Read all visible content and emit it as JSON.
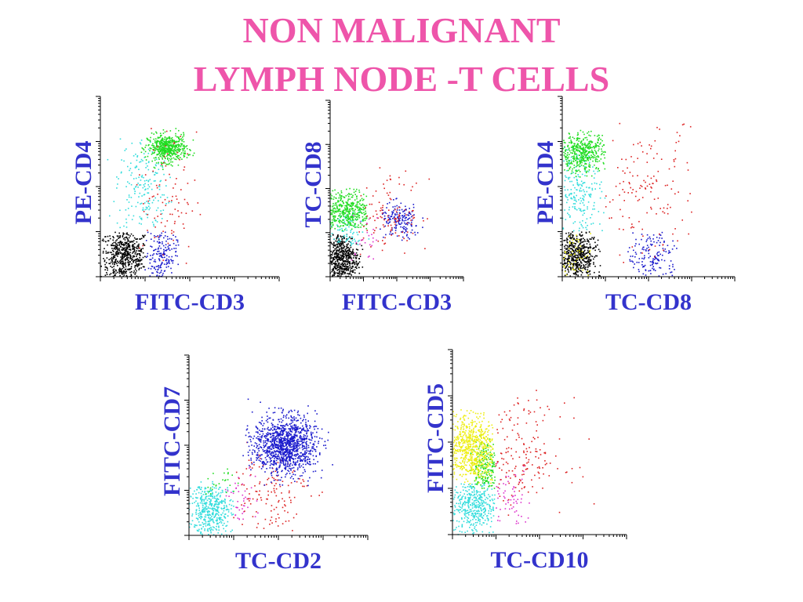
{
  "title": {
    "line1": "NON MALIGNANT",
    "line2": "LYMPH NODE -T CELLS"
  },
  "colors": {
    "title": "#ee55aa",
    "axis_label": "#3333cc",
    "black": "#000000",
    "blue": "#1a1acc",
    "green": "#22dd22",
    "cyan": "#33dddd",
    "red": "#dd2222",
    "magenta": "#dd33cc",
    "yellow": "#eeee11"
  },
  "chart_data": [
    {
      "type": "scatter",
      "xlabel": "FITC-CD3",
      "ylabel": "PE-CD4",
      "xlim": [
        0,
        4
      ],
      "ylim": [
        0,
        4
      ],
      "clusters": [
        {
          "color": "black",
          "n": 520,
          "cx": 0.55,
          "cy": 0.45,
          "sx": 0.28,
          "sy": 0.3,
          "xmin": 0.0,
          "xmax": 1.0,
          "ymin": 0.0,
          "ymax": 1.0
        },
        {
          "color": "cyan",
          "n": 190,
          "cx": 0.95,
          "cy": 2.0,
          "sx": 0.3,
          "sy": 0.55,
          "xmin": 0.1,
          "xmax": 1.6,
          "ymin": 1.0,
          "ymax": 3.1
        },
        {
          "color": "green",
          "n": 520,
          "cx": 1.5,
          "cy": 2.85,
          "sx": 0.22,
          "sy": 0.15,
          "xmin": 0.9,
          "xmax": 2.1,
          "ymin": 2.3,
          "ymax": 3.3
        },
        {
          "color": "blue",
          "n": 170,
          "cx": 1.35,
          "cy": 0.45,
          "sx": 0.18,
          "sy": 0.3,
          "xmin": 1.0,
          "xmax": 1.8,
          "ymin": 0.0,
          "ymax": 1.0
        },
        {
          "color": "red",
          "n": 90,
          "cx": 1.45,
          "cy": 1.7,
          "sx": 0.35,
          "sy": 0.75,
          "xmin": 0.8,
          "xmax": 2.5,
          "ymin": 0.2,
          "ymax": 3.4
        }
      ]
    },
    {
      "type": "scatter",
      "xlabel": "FITC-CD3",
      "ylabel": "TC-CD8",
      "xlim": [
        0,
        4
      ],
      "ylim": [
        0,
        4
      ],
      "clusters": [
        {
          "color": "black",
          "n": 480,
          "cx": 0.35,
          "cy": 0.4,
          "sx": 0.25,
          "sy": 0.3,
          "xmin": 0.0,
          "xmax": 1.0,
          "ymin": 0.0,
          "ymax": 1.0
        },
        {
          "color": "cyan",
          "n": 90,
          "cx": 0.45,
          "cy": 1.1,
          "sx": 0.3,
          "sy": 0.3,
          "xmin": 0.0,
          "xmax": 1.2,
          "ymin": 0.7,
          "ymax": 1.6
        },
        {
          "color": "green",
          "n": 380,
          "cx": 0.5,
          "cy": 1.5,
          "sx": 0.35,
          "sy": 0.25,
          "xmin": 0.0,
          "xmax": 1.1,
          "ymin": 1.05,
          "ymax": 2.0
        },
        {
          "color": "blue",
          "n": 170,
          "cx": 2.1,
          "cy": 1.25,
          "sx": 0.3,
          "sy": 0.2,
          "xmin": 1.5,
          "xmax": 2.8,
          "ymin": 0.8,
          "ymax": 1.8
        },
        {
          "color": "red",
          "n": 110,
          "cx": 1.8,
          "cy": 1.45,
          "sx": 0.6,
          "sy": 0.4,
          "xmin": 0.8,
          "xmax": 3.0,
          "ymin": 0.5,
          "ymax": 2.5
        },
        {
          "color": "magenta",
          "n": 25,
          "cx": 1.1,
          "cy": 0.8,
          "sx": 0.25,
          "sy": 0.3,
          "xmin": 0.6,
          "xmax": 1.6,
          "ymin": 0.2,
          "ymax": 1.5
        }
      ]
    },
    {
      "type": "scatter",
      "xlabel": "TC-CD8",
      "ylabel": "PE-CD4",
      "xlim": [
        0,
        4
      ],
      "ylim": [
        0,
        4
      ],
      "clusters": [
        {
          "color": "black",
          "n": 480,
          "cx": 0.35,
          "cy": 0.45,
          "sx": 0.22,
          "sy": 0.3,
          "xmin": 0.0,
          "xmax": 0.9,
          "ymin": 0.0,
          "ymax": 1.0
        },
        {
          "color": "yellow",
          "n": 50,
          "cx": 0.3,
          "cy": 0.4,
          "sx": 0.2,
          "sy": 0.3,
          "xmin": 0.0,
          "xmax": 0.7,
          "ymin": 0.0,
          "ymax": 1.0
        },
        {
          "color": "cyan",
          "n": 200,
          "cx": 0.4,
          "cy": 1.9,
          "sx": 0.25,
          "sy": 0.55,
          "xmin": 0.0,
          "xmax": 1.0,
          "ymin": 1.0,
          "ymax": 2.9
        },
        {
          "color": "green",
          "n": 420,
          "cx": 0.45,
          "cy": 2.75,
          "sx": 0.3,
          "sy": 0.22,
          "xmin": 0.0,
          "xmax": 1.0,
          "ymin": 2.2,
          "ymax": 3.3
        },
        {
          "color": "blue",
          "n": 150,
          "cx": 2.1,
          "cy": 0.45,
          "sx": 0.3,
          "sy": 0.3,
          "xmin": 1.5,
          "xmax": 2.7,
          "ymin": 0.0,
          "ymax": 1.0
        },
        {
          "color": "red",
          "n": 140,
          "cx": 2.0,
          "cy": 1.9,
          "sx": 0.6,
          "sy": 0.8,
          "xmin": 1.0,
          "xmax": 3.0,
          "ymin": 0.3,
          "ymax": 3.4
        }
      ]
    },
    {
      "type": "scatter",
      "xlabel": "TC-CD2",
      "ylabel": "FITC-CD7",
      "xlim": [
        0,
        4
      ],
      "ylim": [
        0,
        4
      ],
      "clusters": [
        {
          "color": "cyan",
          "n": 420,
          "cx": 0.5,
          "cy": 0.55,
          "sx": 0.25,
          "sy": 0.3,
          "xmin": 0.0,
          "xmax": 1.0,
          "ymin": 0.0,
          "ymax": 1.2
        },
        {
          "color": "green",
          "n": 25,
          "cx": 0.7,
          "cy": 1.2,
          "sx": 0.25,
          "sy": 0.2,
          "xmin": 0.3,
          "xmax": 1.1,
          "ymin": 0.8,
          "ymax": 1.6
        },
        {
          "color": "magenta",
          "n": 45,
          "cx": 1.1,
          "cy": 0.8,
          "sx": 0.2,
          "sy": 0.3,
          "xmin": 0.8,
          "xmax": 1.6,
          "ymin": 0.2,
          "ymax": 1.5
        },
        {
          "color": "red",
          "n": 130,
          "cx": 1.8,
          "cy": 1.0,
          "sx": 0.45,
          "sy": 0.45,
          "xmin": 1.0,
          "xmax": 3.0,
          "ymin": 0.1,
          "ymax": 2.5
        },
        {
          "color": "blue",
          "n": 1200,
          "cx": 2.15,
          "cy": 2.0,
          "sx": 0.35,
          "sy": 0.32,
          "xmin": 1.2,
          "xmax": 3.3,
          "ymin": 0.9,
          "ymax": 3.1
        }
      ]
    },
    {
      "type": "scatter",
      "xlabel": "TC-CD10",
      "ylabel": "FITC-CD5",
      "xlim": [
        0,
        4
      ],
      "ylim": [
        0,
        4
      ],
      "clusters": [
        {
          "color": "cyan",
          "n": 380,
          "cx": 0.5,
          "cy": 0.65,
          "sx": 0.25,
          "sy": 0.35,
          "xmin": 0.0,
          "xmax": 0.98,
          "ymin": 0.0,
          "ymax": 1.1
        },
        {
          "color": "green",
          "n": 200,
          "cx": 0.75,
          "cy": 1.45,
          "sx": 0.2,
          "sy": 0.3,
          "xmin": 0.4,
          "xmax": 0.98,
          "ymin": 1.0,
          "ymax": 2.6
        },
        {
          "color": "yellow",
          "n": 620,
          "cx": 0.4,
          "cy": 1.85,
          "sx": 0.3,
          "sy": 0.4,
          "xmin": 0.0,
          "xmax": 0.98,
          "ymin": 1.1,
          "ymax": 2.7
        },
        {
          "color": "magenta",
          "n": 60,
          "cx": 1.3,
          "cy": 0.8,
          "sx": 0.25,
          "sy": 0.35,
          "xmin": 1.0,
          "xmax": 1.8,
          "ymin": 0.2,
          "ymax": 1.6
        },
        {
          "color": "red",
          "n": 170,
          "cx": 1.5,
          "cy": 1.7,
          "sx": 0.55,
          "sy": 0.6,
          "xmin": 1.0,
          "xmax": 3.3,
          "ymin": 0.4,
          "ymax": 3.2
        }
      ]
    }
  ]
}
